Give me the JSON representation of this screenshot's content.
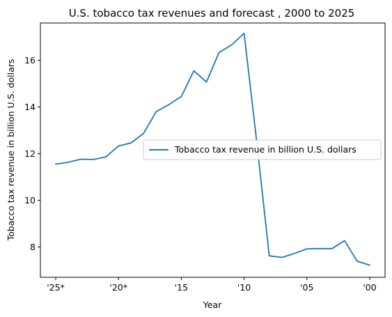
{
  "chart_data": {
    "type": "line",
    "title": "U.S. tobacco tax revenues and forecast , 2000 to 2025",
    "xlabel": "Year",
    "ylabel": "Tobacco tax revenue in billion U.S. dollars",
    "x": [
      "'25*",
      "'24*",
      "'23*",
      "'22*",
      "'21*",
      "'20*",
      "'19",
      "'18",
      "'17",
      "'16",
      "'15",
      "'14",
      "'13",
      "'12",
      "'11",
      "'10",
      "'09",
      "'08",
      "'07",
      "'06",
      "'05",
      "'04",
      "'03",
      "'02",
      "'01",
      "'00"
    ],
    "x_ticks": [
      "'25*",
      "'20*",
      "'15",
      "'10",
      "'05",
      "'00"
    ],
    "y_ticks": [
      8,
      10,
      12,
      14,
      16
    ],
    "ylim": [
      6.7,
      17.6
    ],
    "grid": false,
    "legend_position": "center-right",
    "series": [
      {
        "name": "Tobacco tax revenue in billion U.S. dollars",
        "color": "#1f77b4",
        "values": [
          11.55,
          11.63,
          11.76,
          11.75,
          11.86,
          12.33,
          12.46,
          12.87,
          13.8,
          14.1,
          14.45,
          15.55,
          15.07,
          16.33,
          16.66,
          17.16,
          12.53,
          7.62,
          7.55,
          7.72,
          7.92,
          7.93,
          7.93,
          8.27,
          7.39,
          7.22
        ]
      }
    ]
  }
}
